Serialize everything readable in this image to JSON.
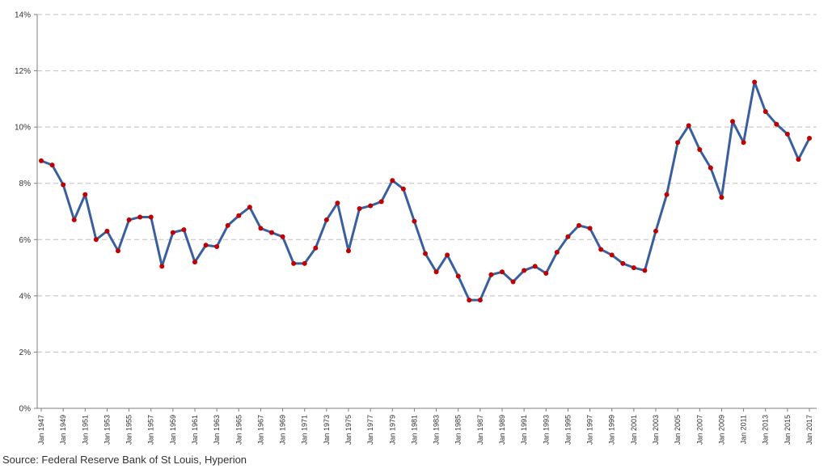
{
  "chart_data": {
    "type": "line",
    "title": "",
    "xlabel": "",
    "ylabel": "",
    "grid": true,
    "legend": "none",
    "ylim": [
      0,
      14
    ],
    "y_ticks": [
      "0%",
      "2%",
      "4%",
      "6%",
      "8%",
      "10%",
      "12%",
      "14%"
    ],
    "x_tick_labels": [
      "Jan 1947",
      "Jan 1949",
      "Jan 1951",
      "Jan 1953",
      "Jan 1955",
      "Jan 1957",
      "Jan 1959",
      "Jan 1961",
      "Jan 1963",
      "Jan 1965",
      "Jan 1967",
      "Jan 1969",
      "Jan 1971",
      "Jan 1973",
      "Jan 1975",
      "Jan 1977",
      "Jan 1979",
      "Jan 1981",
      "Jan 1983",
      "Jan 1985",
      "Jan 1987",
      "Jan 1989",
      "Jan 1991",
      "Jan 1993",
      "Jan 1995",
      "Jan 1997",
      "Jan 1999",
      "Jan 2001",
      "Jan 2003",
      "Jan 2005",
      "Jan 2007",
      "Jan 2009",
      "Jan 2011",
      "Jan 2013",
      "Jan 2015",
      "Jan 2017"
    ],
    "x": [
      1947,
      1948,
      1949,
      1950,
      1951,
      1952,
      1953,
      1954,
      1955,
      1956,
      1957,
      1958,
      1959,
      1960,
      1961,
      1962,
      1963,
      1964,
      1965,
      1966,
      1967,
      1968,
      1969,
      1970,
      1971,
      1972,
      1973,
      1974,
      1975,
      1976,
      1977,
      1978,
      1979,
      1980,
      1981,
      1982,
      1983,
      1984,
      1985,
      1986,
      1987,
      1988,
      1989,
      1990,
      1991,
      1992,
      1993,
      1994,
      1995,
      1996,
      1997,
      1998,
      1999,
      2000,
      2001,
      2002,
      2003,
      2004,
      2005,
      2006,
      2007,
      2008,
      2009,
      2010,
      2011,
      2012,
      2013,
      2014,
      2015,
      2016,
      2017
    ],
    "series": [
      {
        "name": "",
        "values": [
          8.8,
          8.65,
          7.95,
          6.7,
          7.6,
          6.0,
          6.3,
          5.6,
          6.7,
          6.8,
          6.8,
          5.05,
          6.25,
          6.35,
          5.2,
          5.8,
          5.75,
          6.5,
          6.85,
          7.15,
          6.4,
          6.25,
          6.1,
          5.15,
          5.15,
          5.7,
          6.7,
          7.3,
          5.6,
          7.1,
          7.2,
          7.35,
          8.1,
          7.8,
          6.65,
          5.5,
          4.85,
          5.45,
          4.7,
          3.85,
          3.85,
          4.75,
          4.85,
          4.5,
          4.9,
          5.05,
          4.8,
          5.55,
          6.1,
          6.5,
          6.4,
          5.65,
          5.45,
          5.15,
          5.0,
          4.9,
          6.3,
          7.6,
          9.45,
          10.05,
          9.2,
          8.55,
          7.5,
          10.2,
          9.45,
          11.6,
          10.55,
          10.1,
          9.75,
          8.85,
          9.6
        ]
      }
    ],
    "colors": {
      "line": "#3a5f9f",
      "marker": "#c00000",
      "grid": "#bfbfbf",
      "axis": "#7f7f7f"
    }
  },
  "source_note": "Source: Federal Reserve Bank of St Louis, Hyperion"
}
